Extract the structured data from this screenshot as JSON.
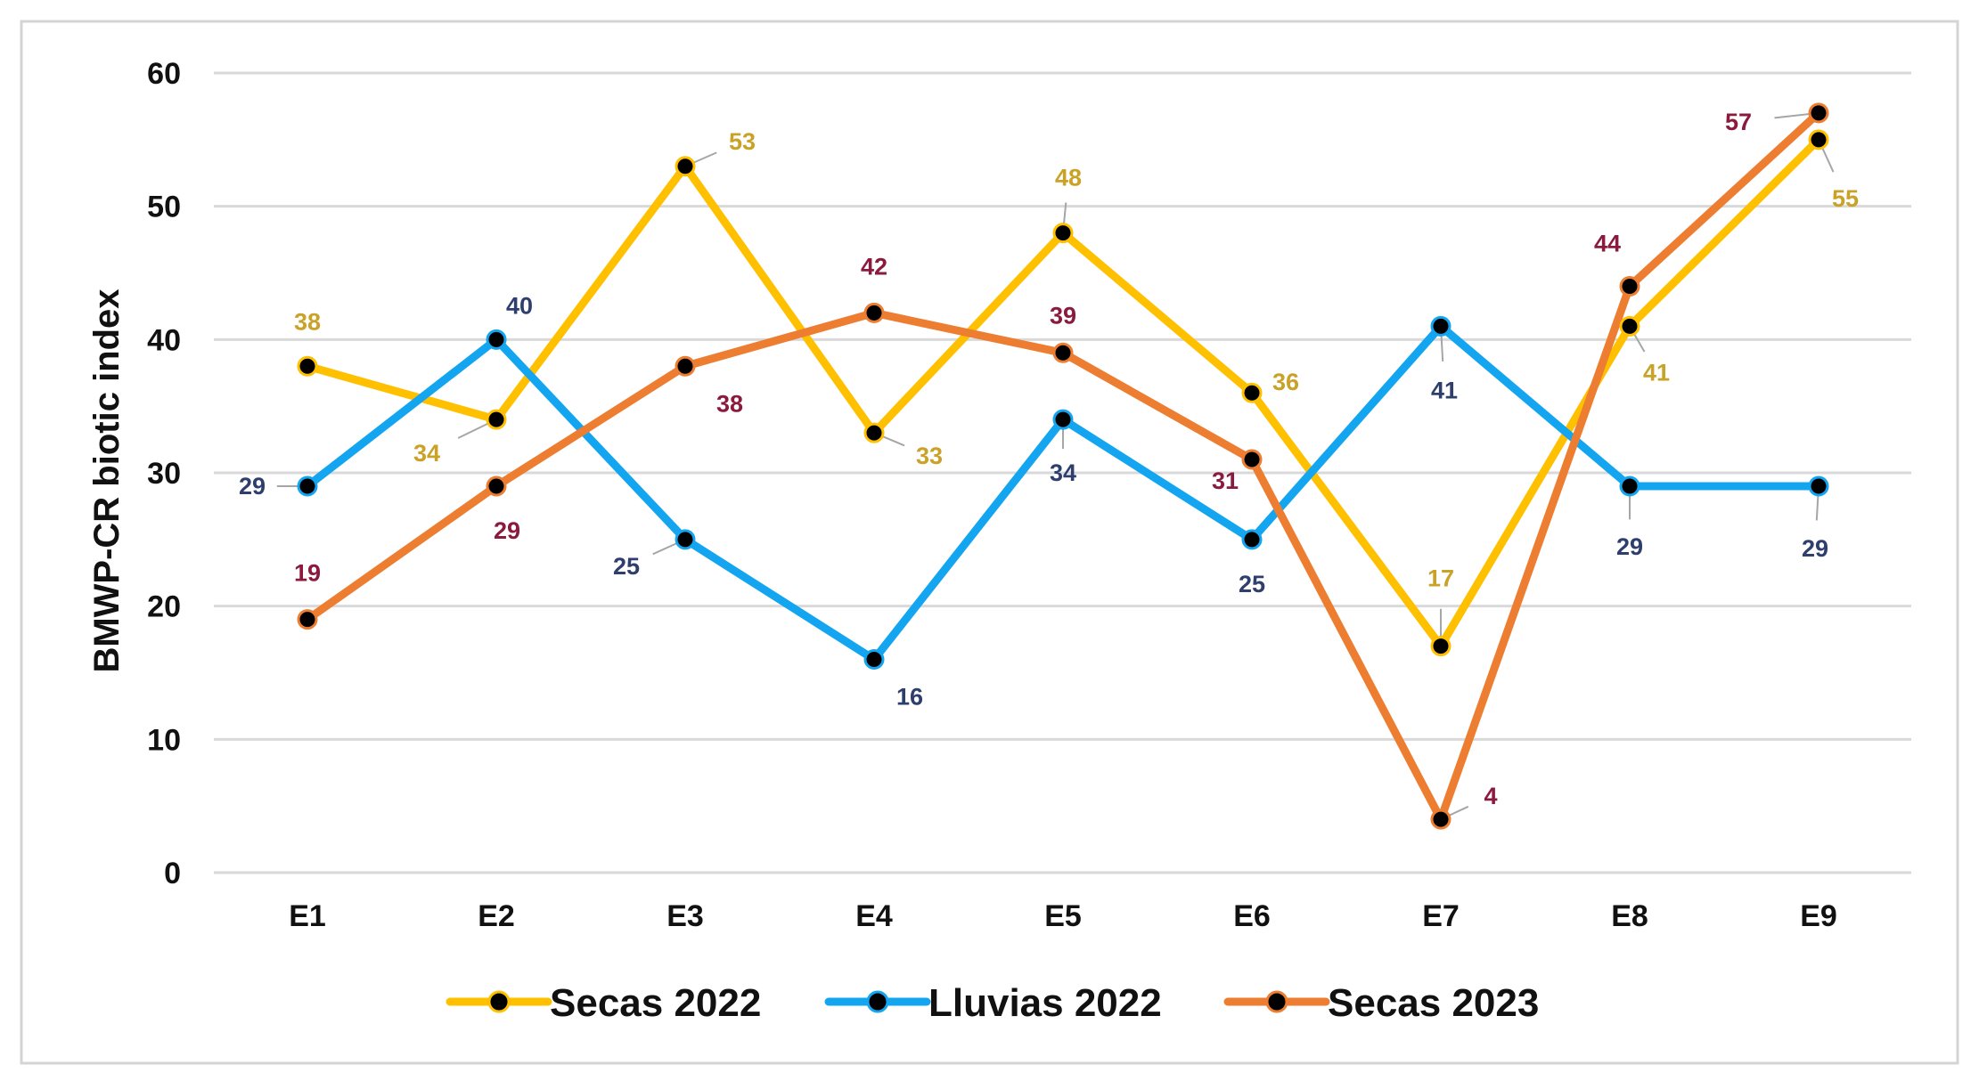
{
  "chart_data": {
    "type": "line",
    "title": "",
    "xlabel": "",
    "ylabel": "BMWP-CR biotic index",
    "ylim": [
      0,
      60
    ],
    "yticks": [
      0,
      10,
      20,
      30,
      40,
      50,
      60
    ],
    "grid": true,
    "legend_position": "bottom",
    "categories": [
      "E1",
      "E2",
      "E3",
      "E4",
      "E5",
      "E6",
      "E7",
      "E8",
      "E9"
    ],
    "series": [
      {
        "name": "Secas 2022",
        "color": "#FFC000",
        "label_color": "#C9A227",
        "values": [
          38,
          34,
          53,
          33,
          48,
          36,
          17,
          41,
          55
        ],
        "labels": [
          "38",
          "34",
          "53",
          "33",
          "48",
          "36",
          "17",
          "41",
          "55"
        ]
      },
      {
        "name": "Lluvias 2022",
        "color": "#14A5F0",
        "label_color": "#2E3F6E",
        "values": [
          29,
          40,
          25,
          16,
          34,
          25,
          41,
          29,
          29
        ],
        "labels": [
          "29",
          "40",
          "25",
          "16",
          "34",
          "25",
          "41",
          "29",
          "29"
        ]
      },
      {
        "name": "Secas 2023",
        "color": "#ED7D31",
        "label_color": "#8B1A3F",
        "values": [
          19,
          29,
          38,
          42,
          39,
          31,
          4,
          44,
          57
        ],
        "labels": [
          "19",
          "29",
          "38",
          "42",
          "39",
          "31",
          "4",
          "44",
          "57"
        ]
      }
    ]
  }
}
